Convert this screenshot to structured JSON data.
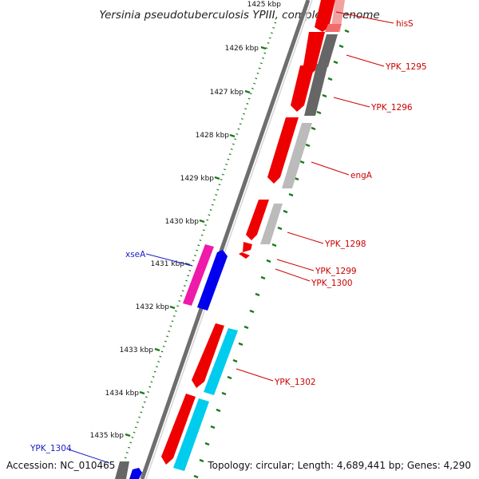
{
  "title": "Yersinia pseudotuberculosis YPIII, complete genome",
  "scale_labels": [
    "1425 kbp",
    "1426 kbp",
    "1427 kbp",
    "1428 kbp",
    "1429 kbp",
    "1430 kbp",
    "1431 kbp",
    "1432 kbp",
    "1433 kbp",
    "1434 kbp",
    "1435 kbp"
  ],
  "gene_labels": {
    "hisS": "hisS",
    "ypk1295": "YPK_1295",
    "ypk1296": "YPK_1296",
    "engA": "engA",
    "ypk1298": "YPK_1298",
    "ypk1299": "YPK_1299",
    "ypk1300": "YPK_1300",
    "xseA": "xseA",
    "ypk1302": "YPK_1302",
    "ypk1304": "YPK_1304"
  },
  "footer": {
    "accession": "Accession: NC_010465",
    "topology": "Topology: circular; Length: 4,689,441 bp; Genes: 4,290"
  },
  "colors": {
    "cds_red": "#ee0000",
    "feature_gray_dark": "#666666",
    "feature_gray_light": "#bbbbbb",
    "feature_cyan": "#00ccee",
    "feature_blue": "#0000ee",
    "feature_magenta": "#ee1aaa",
    "scale_tick": "#1a7a1a",
    "label_red": "#cc0000",
    "label_blue": "#1a1acc"
  }
}
